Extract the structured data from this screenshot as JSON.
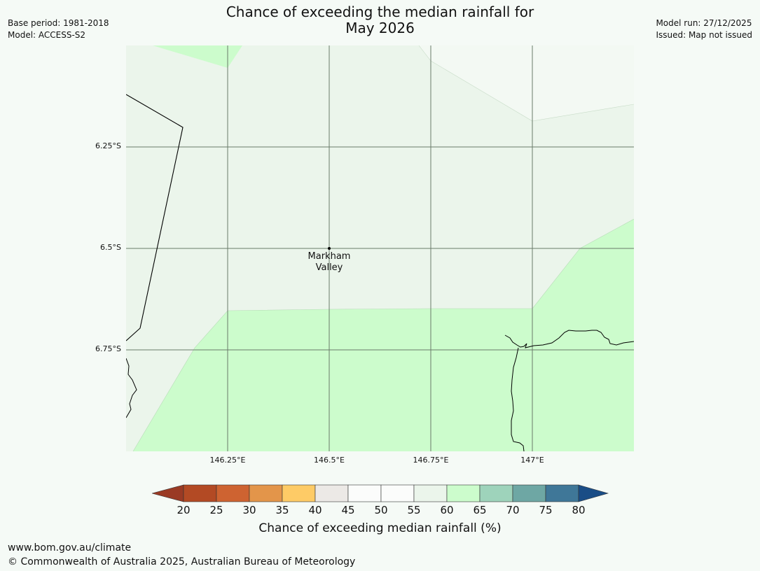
{
  "header": {
    "title_line1": "Chance of exceeding the median rainfall for",
    "title_line2": "May 2026",
    "base_period": "Base period: 1981-2018",
    "model": "Model: ACCESS-S2",
    "model_run": "Model run: 27/12/2025",
    "issued": "Issued: Map not issued"
  },
  "map": {
    "lat_labels": [
      "6.25°S",
      "6.5°S",
      "6.75°S"
    ],
    "lon_labels": [
      "146.25°E",
      "146.5°E",
      "146.75°E",
      "147°E"
    ],
    "place": {
      "line1": "Markham",
      "line2": "Valley"
    },
    "category_colors": {
      "55-60": "#ebf5eb",
      "60-65": "#ccfccc"
    }
  },
  "legend": {
    "title": "Chance of exceeding median rainfall (%)",
    "ticks": [
      "20",
      "25",
      "30",
      "35",
      "40",
      "45",
      "50",
      "55",
      "60",
      "65",
      "70",
      "75",
      "80"
    ],
    "colors": [
      "#9a3a24",
      "#b34a24",
      "#ce6331",
      "#e3954a",
      "#fecb66",
      "#ece9e6",
      "#fbfcfb",
      "#fbfcfb",
      "#ebf5eb",
      "#ccfccc",
      "#9ed3bb",
      "#6ea7a4",
      "#3f7798",
      "#1a4d86"
    ]
  },
  "footer": {
    "url": "www.bom.gov.au/climate",
    "copyright": "© Commonwealth of Australia 2025, Australian Bureau of Meteorology"
  }
}
